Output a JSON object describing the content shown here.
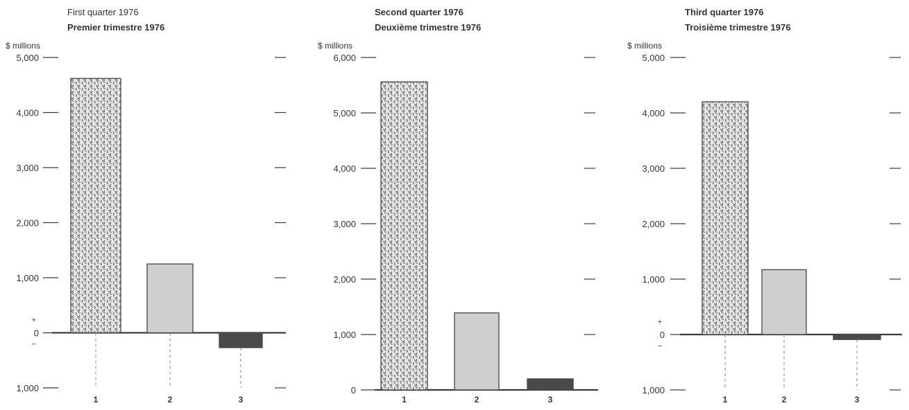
{
  "colors": {
    "background": "#ffffff",
    "axis": "#3a3a3a",
    "bar1_fill": "#e6e6e6",
    "bar1_speckle": "#555555",
    "bar2_fill": "#cfcfcf",
    "bar3_fill": "#4a4a4a",
    "text": "#333333",
    "dash": "#888888"
  },
  "chart_data": [
    {
      "type": "bar",
      "title": "First quarter 1976",
      "subtitle": "Premier trimestre 1976",
      "ylabel": "$ millions",
      "ylim": [
        -1000,
        5000
      ],
      "yticks": [
        5000,
        4000,
        3000,
        2000,
        1000,
        0,
        -1000
      ],
      "ytick_labels": [
        "5,000",
        "4,000",
        "3,000",
        "2,000",
        "1,000",
        "0",
        "1,000"
      ],
      "sign_markers": {
        "plus": "+",
        "minus": "−"
      },
      "categories": [
        "1",
        "2",
        "3"
      ],
      "values": [
        4620,
        1250,
        -270
      ],
      "grid": false
    },
    {
      "type": "bar",
      "title": "Second quarter 1976",
      "subtitle": "Deuxième trimestre 1976",
      "ylabel": "$ millions",
      "ylim": [
        0,
        6000
      ],
      "yticks": [
        6000,
        5000,
        4000,
        3000,
        2000,
        1000,
        0
      ],
      "ytick_labels": [
        "6,000",
        "5,000",
        "4,000",
        "3,000",
        "2,000",
        "1,000",
        "0"
      ],
      "sign_markers": null,
      "categories": [
        "1",
        "2",
        "3"
      ],
      "values": [
        5560,
        1390,
        200
      ],
      "grid": false
    },
    {
      "type": "bar",
      "title": "Third quarter 1976",
      "subtitle": "Troisième trimestre 1976",
      "ylabel": "$ millions",
      "ylim": [
        -1000,
        5000
      ],
      "yticks": [
        5000,
        4000,
        3000,
        2000,
        1000,
        0,
        -1000
      ],
      "ytick_labels": [
        "5,000",
        "4,000",
        "3,000",
        "2,000",
        "1,000",
        "0",
        "1,000"
      ],
      "sign_markers": {
        "plus": "+",
        "minus": "−"
      },
      "categories": [
        "1",
        "2",
        "3"
      ],
      "values": [
        4200,
        1170,
        -90
      ],
      "grid": false
    }
  ]
}
